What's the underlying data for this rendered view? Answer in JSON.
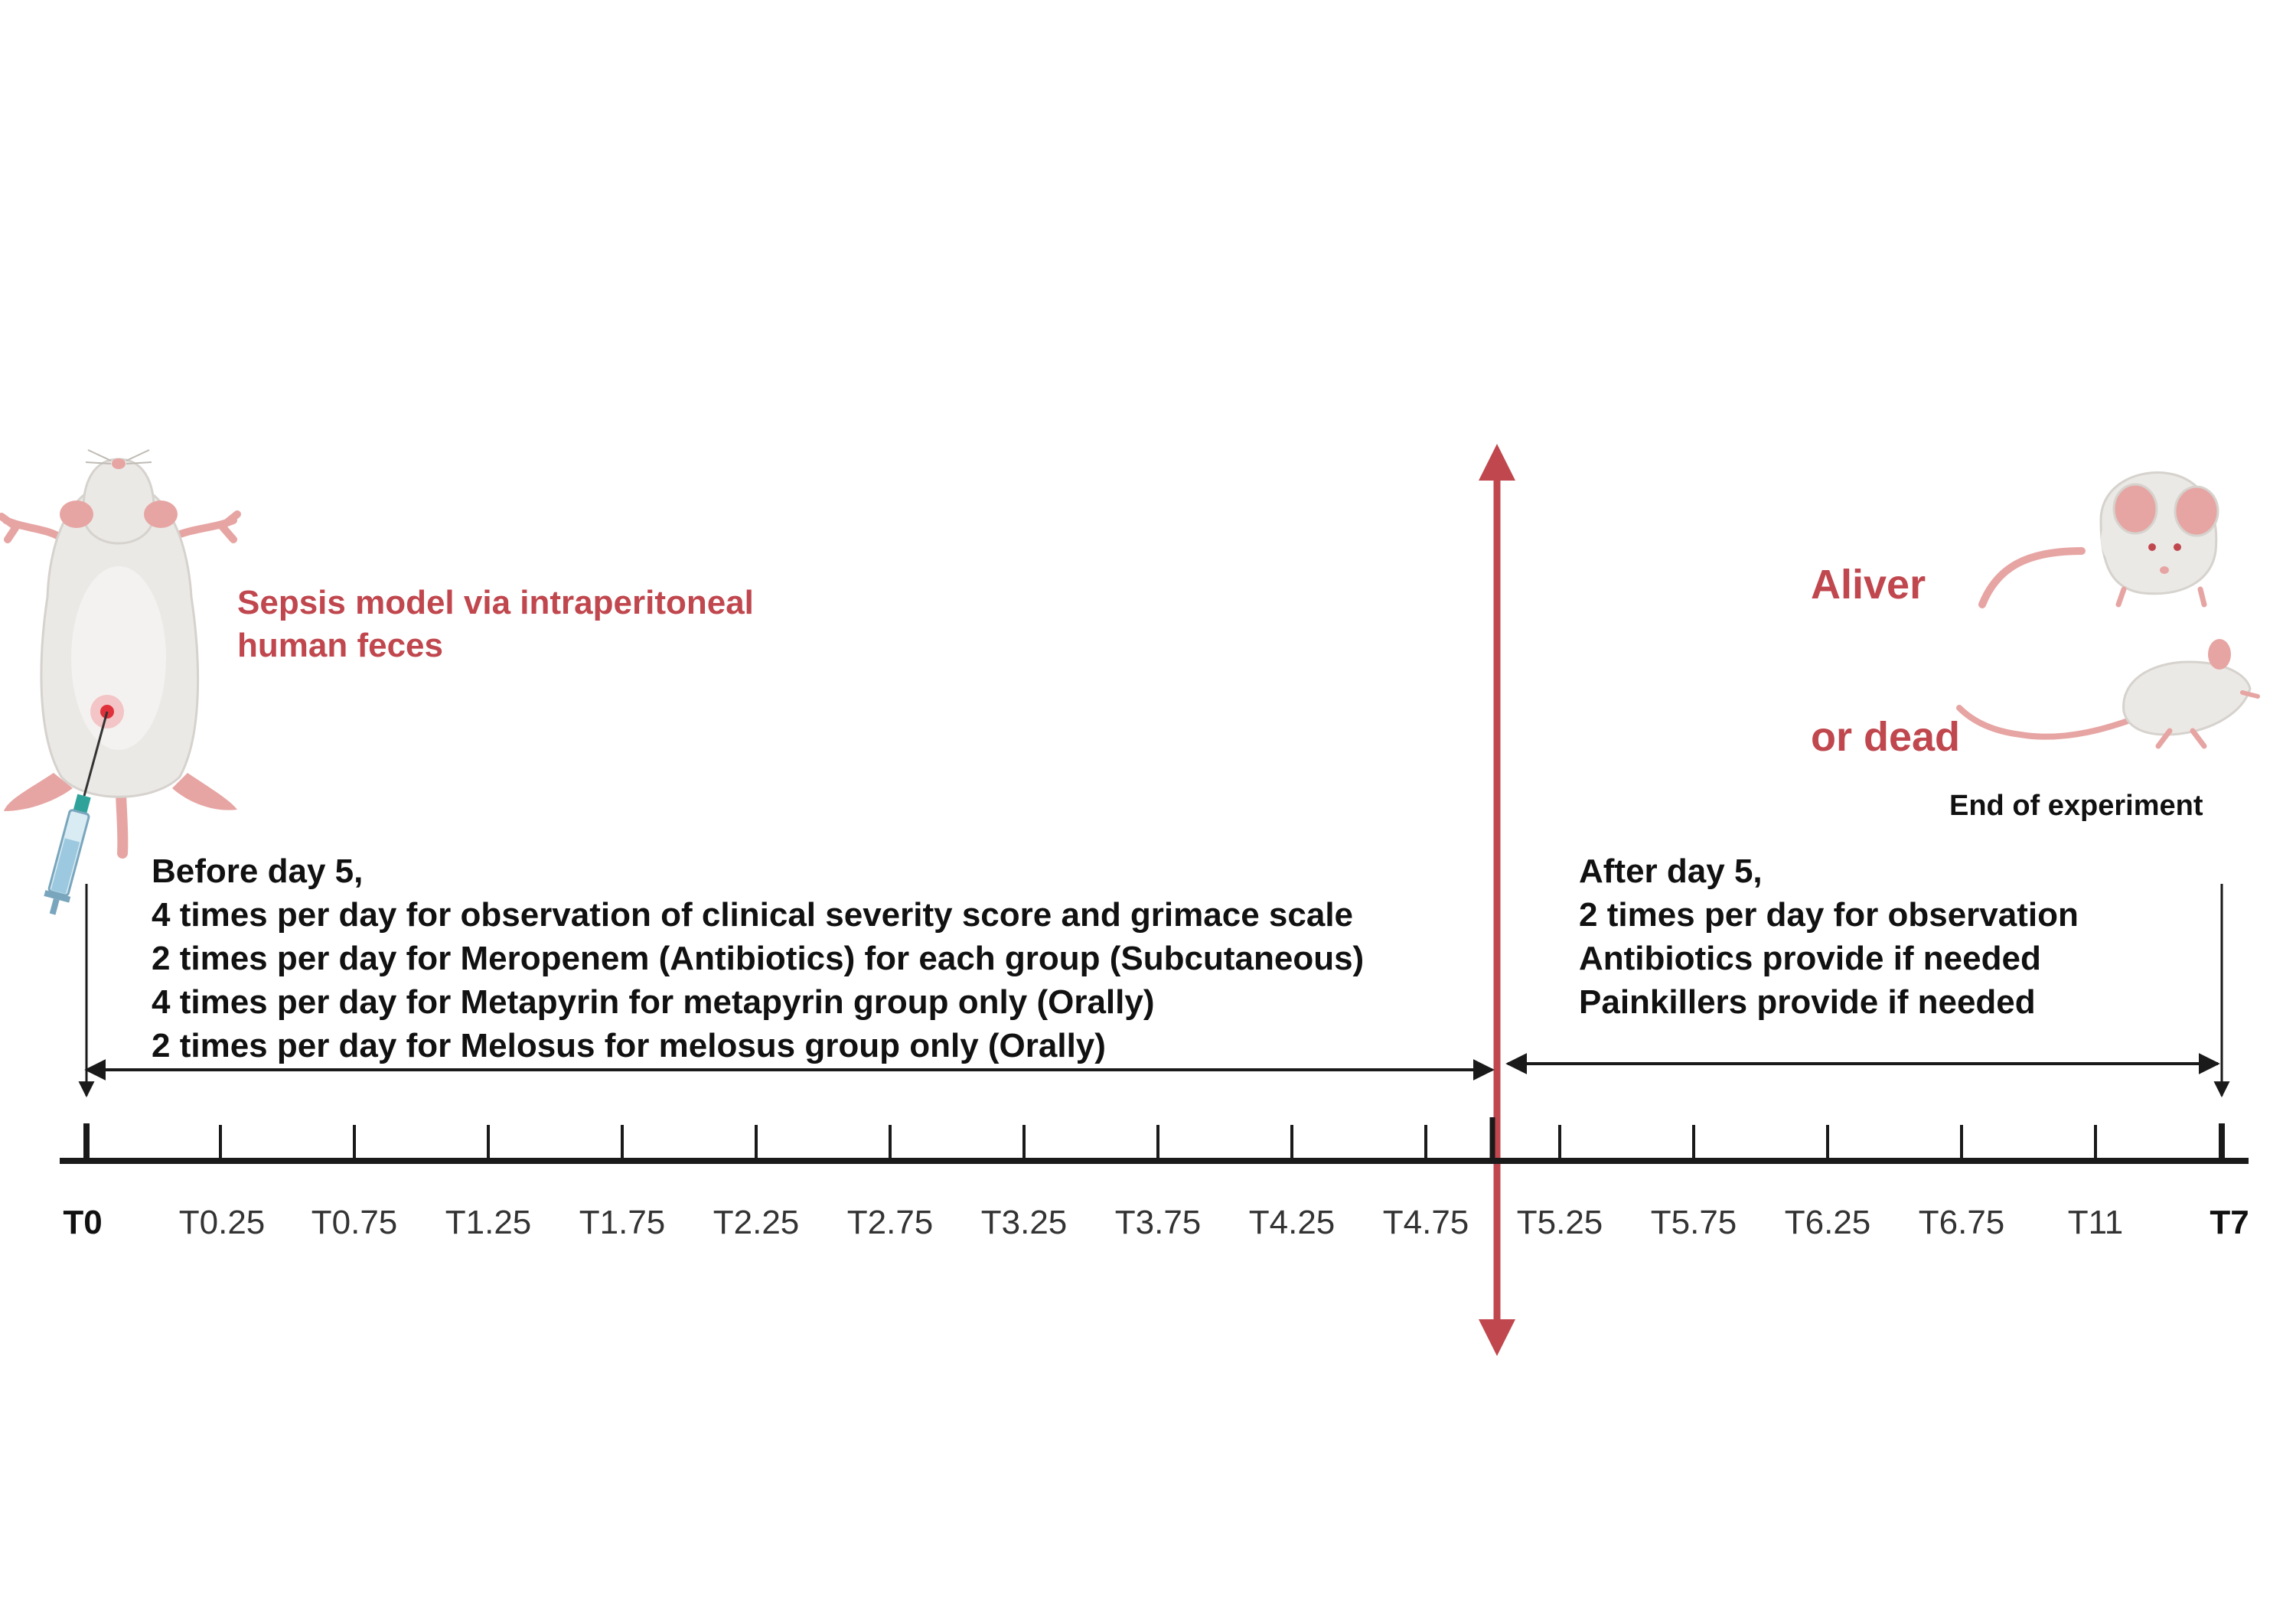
{
  "injection_note": {
    "line1": "Sepsis model via intraperitoneal",
    "line2": "human feces"
  },
  "outcomes": {
    "alive_label": "Aliver",
    "dead_label": "or dead",
    "end_label": "End of experiment"
  },
  "before_phase": {
    "title": "Before day 5,",
    "lines": [
      "4 times per day for observation of clinical severity score  and grimace scale",
      "2 times per day for Meropenem (Antibiotics) for each group (Subcutaneous)",
      "4 times per day for Metapyrin for metapyrin group only (Orally)",
      "2 times per day for Melosus for melosus group only (Orally)"
    ]
  },
  "after_phase": {
    "title": "After day 5,",
    "lines": [
      "2 times per day for observation",
      "Antibiotics provide if needed",
      "Painkillers provide if needed"
    ]
  },
  "timeline": {
    "ticks": [
      "T0",
      "T0.25",
      "T0.75",
      "T1.25",
      "T1.75",
      "T2.25",
      "T2.75",
      "T3.25",
      "T3.75",
      "T4.25",
      "T4.75",
      "T5.25",
      "T5.75",
      "T6.25",
      "T6.75",
      "T11",
      "T7"
    ],
    "bold_ticks": [
      "T0",
      "T7"
    ]
  },
  "colors": {
    "accent_red": "#c0474e",
    "axis": "#1a1a1a",
    "mouse_body": "#ebe9e6",
    "mouse_pink": "#e6a5a3"
  },
  "icons": [
    "mouse-supine-icon",
    "syringe-icon",
    "mouse-standing-icon",
    "mouse-lying-icon",
    "divider-double-arrow-icon"
  ]
}
